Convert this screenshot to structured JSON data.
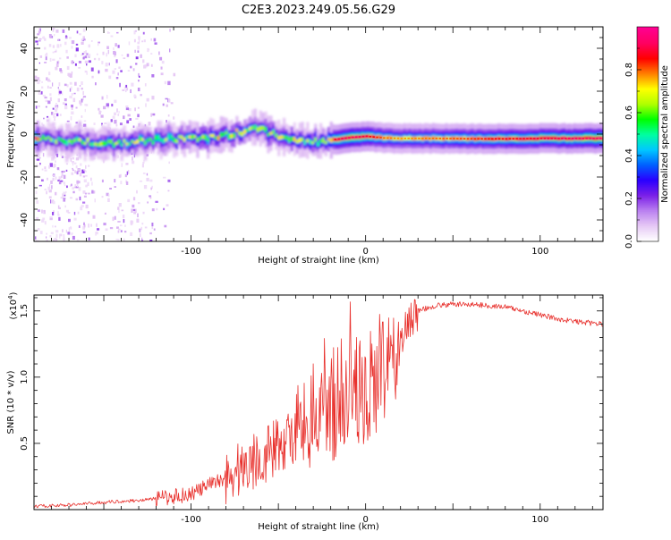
{
  "title": "C2E3.2023.249.05.56.G29",
  "chart_data": [
    {
      "type": "heatmap",
      "xlabel": "Height of straight line (km)",
      "ylabel": "Frequency (Hz)",
      "xlim": [
        -190,
        136
      ],
      "ylim": [
        -50,
        50
      ],
      "x_ticks": [
        -100,
        0,
        100
      ],
      "y_ticks": [
        -40,
        -20,
        0,
        20,
        40
      ],
      "colorbar": {
        "label": "Normalized spectral amplitude",
        "range": [
          0,
          1
        ],
        "ticks": [
          "0.0",
          "0.2",
          "0.4",
          "0.6",
          "0.8"
        ],
        "colors": [
          "#ffffff",
          "#e6c8f5",
          "#b97ff0",
          "#7a1fe8",
          "#2a00ff",
          "#0060ff",
          "#00c8ff",
          "#00ffa0",
          "#00ff00",
          "#b0ff00",
          "#ffff00",
          "#ff8000",
          "#ff0000",
          "#ff0060",
          "#ff0090"
        ]
      },
      "ridge": [
        {
          "x": -188,
          "f": -2.5,
          "a": 0.5
        },
        {
          "x": -175,
          "f": -3.0,
          "a": 0.55
        },
        {
          "x": -160,
          "f": -3.5,
          "a": 0.6
        },
        {
          "x": -150,
          "f": -4.5,
          "a": 0.6
        },
        {
          "x": -140,
          "f": -4.0,
          "a": 0.62
        },
        {
          "x": -130,
          "f": -3.0,
          "a": 0.6
        },
        {
          "x": -120,
          "f": -2.5,
          "a": 0.58
        },
        {
          "x": -110,
          "f": -2.0,
          "a": 0.6
        },
        {
          "x": -100,
          "f": -2.5,
          "a": 0.62
        },
        {
          "x": -90,
          "f": -1.5,
          "a": 0.65
        },
        {
          "x": -80,
          "f": -0.5,
          "a": 0.65
        },
        {
          "x": -70,
          "f": 1.5,
          "a": 0.62
        },
        {
          "x": -62,
          "f": 3.0,
          "a": 0.6
        },
        {
          "x": -55,
          "f": 0.5,
          "a": 0.62
        },
        {
          "x": -45,
          "f": -2.0,
          "a": 0.65
        },
        {
          "x": -35,
          "f": -3.5,
          "a": 0.6
        },
        {
          "x": -25,
          "f": -4.0,
          "a": 0.6
        },
        {
          "x": -18,
          "f": -2.5,
          "a": 0.85
        },
        {
          "x": -8,
          "f": -1.5,
          "a": 0.9
        },
        {
          "x": 0,
          "f": -1.0,
          "a": 0.85
        },
        {
          "x": 10,
          "f": -1.8,
          "a": 0.75
        },
        {
          "x": 20,
          "f": -2.0,
          "a": 0.72
        },
        {
          "x": 40,
          "f": -2.0,
          "a": 0.75
        },
        {
          "x": 60,
          "f": -2.2,
          "a": 0.78
        },
        {
          "x": 80,
          "f": -2.2,
          "a": 0.82
        },
        {
          "x": 100,
          "f": -2.0,
          "a": 0.85
        },
        {
          "x": 120,
          "f": -2.0,
          "a": 0.88
        },
        {
          "x": 136,
          "f": -2.0,
          "a": 0.9
        }
      ]
    },
    {
      "type": "line",
      "xlabel": "Height of straight line (km)",
      "ylabel": "SNR (10 * v/v)",
      "y_multiplier": "(x10",
      "y_multiplier_exp": "4",
      "y_multiplier_close": ")",
      "xlim": [
        -190,
        136
      ],
      "ylim": [
        0,
        16200
      ],
      "x_ticks": [
        -100,
        0,
        100
      ],
      "y_tick_values": [
        5000,
        10000,
        15000
      ],
      "y_tick_labels": [
        "0.5",
        "1.0",
        "1.5"
      ],
      "series": [
        {
          "color": "#e8302c",
          "x": [
            -190,
            -170,
            -150,
            -130,
            -115,
            -100,
            -90,
            -80,
            -70,
            -60,
            -50,
            -40,
            -30,
            -20,
            -10,
            -5,
            0,
            5,
            10,
            15,
            20,
            25,
            30,
            40,
            50,
            60,
            70,
            80,
            90,
            100,
            110,
            120,
            136
          ],
          "y": [
            250,
            350,
            550,
            700,
            900,
            1200,
            1800,
            2500,
            3200,
            4000,
            4800,
            5800,
            6800,
            7800,
            8500,
            9200,
            9000,
            9500,
            10200,
            11200,
            12500,
            14200,
            15000,
            15400,
            15500,
            15500,
            15400,
            15300,
            15000,
            14700,
            14400,
            14200,
            14000
          ]
        }
      ]
    }
  ]
}
